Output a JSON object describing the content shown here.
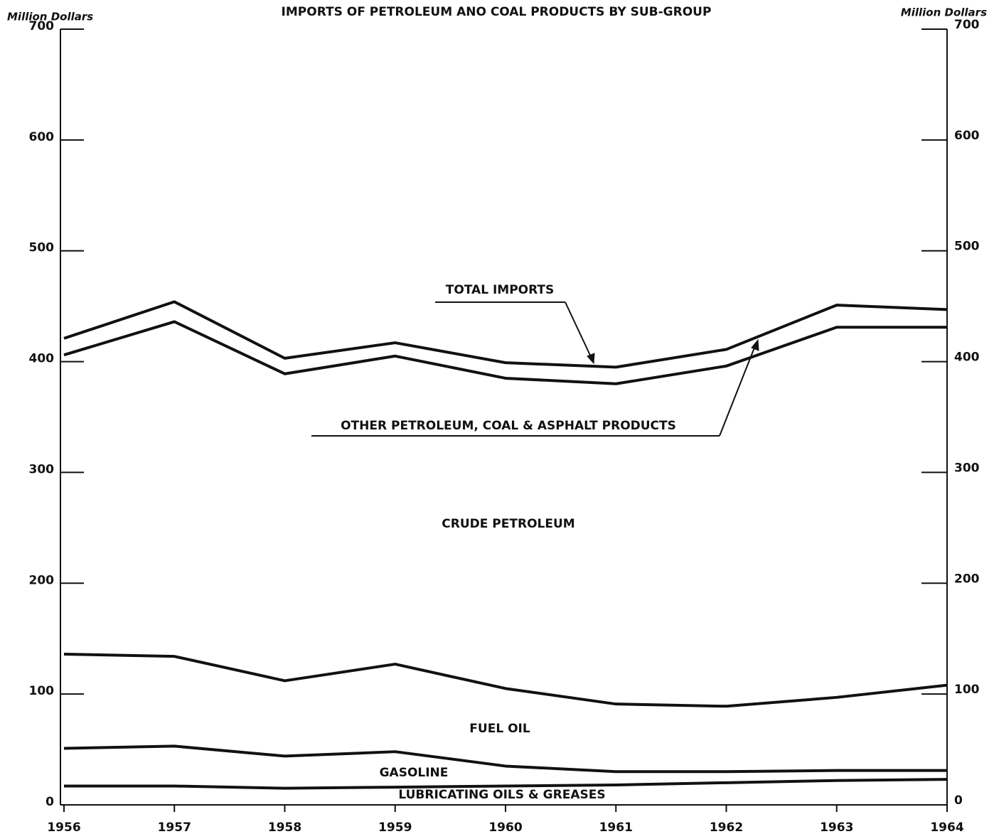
{
  "chart_data": {
    "type": "line",
    "stacked": true,
    "title": "IMPORTS OF PETROLEUM ANO COAL PRODUCTS BY SUB-GROUP",
    "y_label": "Million Dollars",
    "y2_label": "Million Dollars",
    "x": [
      1956,
      1957,
      1958,
      1959,
      1960,
      1961,
      1962,
      1963,
      1964
    ],
    "xlim": [
      1956,
      1964
    ],
    "xticks": [
      1956,
      1957,
      1958,
      1959,
      1960,
      1961,
      1962,
      1963,
      1964
    ],
    "ylim": [
      0,
      700
    ],
    "yticks": [
      0,
      100,
      200,
      300,
      400,
      500,
      600,
      700
    ],
    "y2lim": [
      0,
      700
    ],
    "y2ticks": [
      0,
      100,
      200,
      300,
      400,
      500,
      600,
      700
    ],
    "annotations": [
      "TOTAL IMPORTS"
    ],
    "series": [
      {
        "name": "LUBRICATING OILS & GREASES",
        "color": "#111111",
        "values": [
          17,
          17,
          15,
          16,
          17,
          18,
          20,
          22,
          23
        ]
      },
      {
        "name": "GASOLINE",
        "color": "#111111",
        "values": [
          34,
          36,
          29,
          32,
          18,
          12,
          10,
          9,
          8
        ]
      },
      {
        "name": "FUEL OIL",
        "color": "#111111",
        "values": [
          85,
          81,
          68,
          79,
          70,
          61,
          59,
          66,
          77
        ]
      },
      {
        "name": "CRUDE PETROLEUM",
        "color": "#111111",
        "values": [
          270,
          302,
          277,
          278,
          280,
          289,
          307,
          334,
          323
        ]
      },
      {
        "name": "OTHER PETROLEUM, COAL & ASPHALT PRODUCTS",
        "color": "#111111",
        "values": [
          15,
          18,
          14,
          12,
          14,
          15,
          15,
          20,
          16
        ]
      }
    ]
  }
}
